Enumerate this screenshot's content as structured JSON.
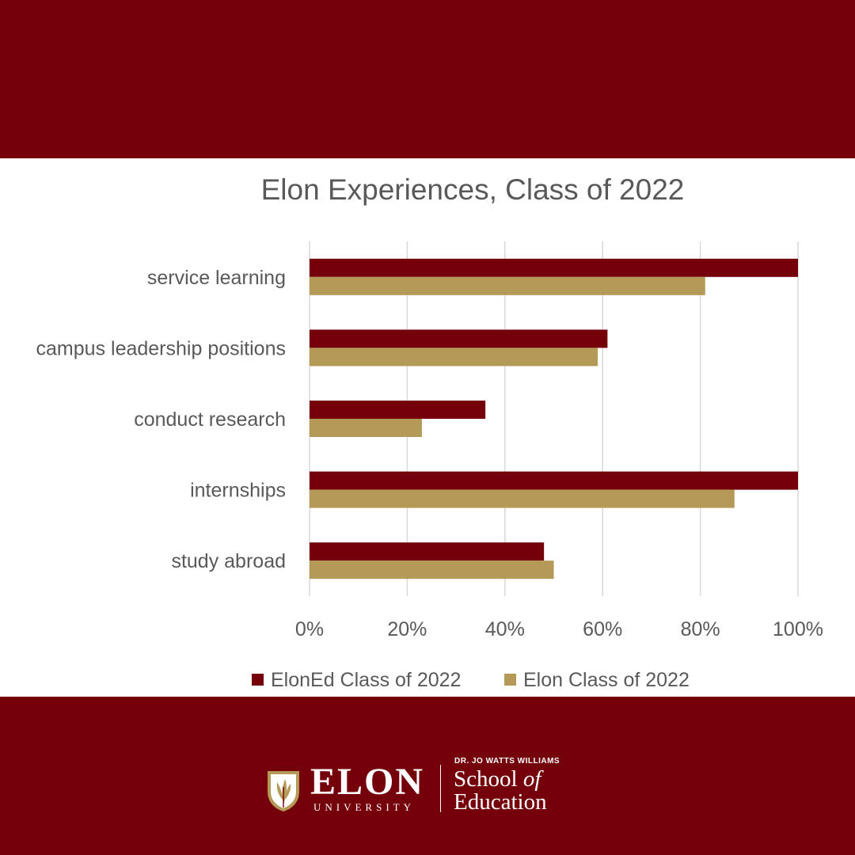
{
  "colors": {
    "maroon": "#73000a",
    "gold": "#b59a57",
    "grid": "#d9d9d9",
    "text": "#595959"
  },
  "chart_data": {
    "type": "bar",
    "orientation": "horizontal",
    "title": "Elon Experiences, Class of 2022",
    "categories": [
      "service learning",
      "campus leadership positions",
      "conduct research",
      "internships",
      "study abroad"
    ],
    "series": [
      {
        "name": "ElonEd Class of 2022",
        "color": "#73000a",
        "values": [
          100,
          61,
          36,
          100,
          48
        ]
      },
      {
        "name": "Elon Class of 2022",
        "color": "#b59a57",
        "values": [
          81,
          59,
          23,
          87,
          50
        ]
      }
    ],
    "xlim": [
      0,
      100
    ],
    "xticks": [
      "0%",
      "20%",
      "40%",
      "60%",
      "80%",
      "100%"
    ],
    "xlabel": "",
    "ylabel": "",
    "grid": true,
    "legend": "bottom"
  },
  "logo": {
    "elon": "ELON",
    "university": "UNIVERSITY",
    "dr_line": "DR. JO WATTS WILLIAMS",
    "school": "School",
    "of": "of",
    "education": "Education",
    "shield_icon": "phoenix-shield-icon"
  }
}
